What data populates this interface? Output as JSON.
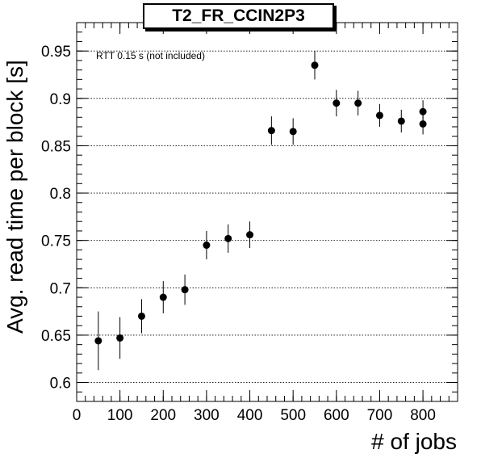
{
  "chart_data": {
    "type": "scatter",
    "title": "T2_FR_CCIN2P3",
    "xlabel": "# of jobs",
    "ylabel": "Avg. read time per block [s]",
    "annotation": "RTT 0.15 s (not included)",
    "xlim": [
      0,
      880
    ],
    "ylim": [
      0.58,
      0.98
    ],
    "x_ticks": [
      0,
      100,
      200,
      300,
      400,
      500,
      600,
      700,
      800
    ],
    "y_ticks": [
      0.6,
      0.65,
      0.7,
      0.75,
      0.8,
      0.85,
      0.9,
      0.95
    ],
    "grid": "horizontal",
    "points": [
      {
        "x": 50,
        "y": 0.644,
        "err": 0.031
      },
      {
        "x": 100,
        "y": 0.647,
        "err": 0.022
      },
      {
        "x": 150,
        "y": 0.67,
        "err": 0.018
      },
      {
        "x": 200,
        "y": 0.69,
        "err": 0.017
      },
      {
        "x": 250,
        "y": 0.698,
        "err": 0.016
      },
      {
        "x": 300,
        "y": 0.745,
        "err": 0.015
      },
      {
        "x": 350,
        "y": 0.752,
        "err": 0.015
      },
      {
        "x": 400,
        "y": 0.756,
        "err": 0.014
      },
      {
        "x": 450,
        "y": 0.866,
        "err": 0.015
      },
      {
        "x": 500,
        "y": 0.865,
        "err": 0.014
      },
      {
        "x": 550,
        "y": 0.935,
        "err": 0.015
      },
      {
        "x": 600,
        "y": 0.895,
        "err": 0.014
      },
      {
        "x": 650,
        "y": 0.895,
        "err": 0.013
      },
      {
        "x": 700,
        "y": 0.882,
        "err": 0.012
      },
      {
        "x": 750,
        "y": 0.876,
        "err": 0.012
      },
      {
        "x": 800,
        "y": 0.886,
        "err": 0.012
      },
      {
        "x": 800,
        "y": 0.873,
        "err": 0.011
      }
    ]
  }
}
